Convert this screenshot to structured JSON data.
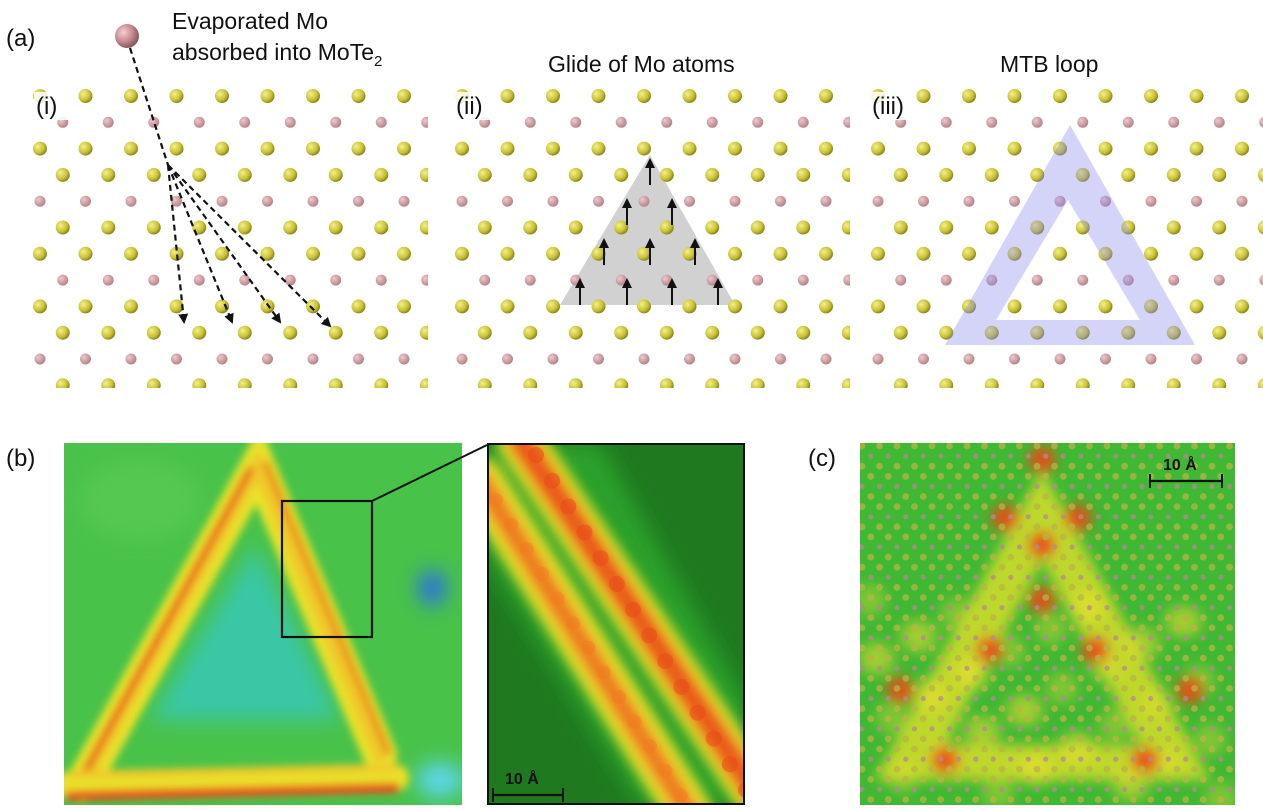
{
  "figure": {
    "panel_a": {
      "label": "(a)",
      "sub_i": "(i)",
      "sub_ii": "(ii)",
      "sub_iii": "(iii)",
      "caption_i_line1": "Evaporated Mo",
      "caption_i_line2_prefix": "absorbed into MoTe",
      "caption_i_line2_sub": "2",
      "title_ii": "Glide of Mo atoms",
      "title_iii": "MTB loop"
    },
    "panel_b": {
      "label": "(b)",
      "scale_bar": "10 Å"
    },
    "panel_c": {
      "label": "(c)",
      "scale_bar": "10 Å"
    },
    "colors": {
      "te_atom": "#c8c23c",
      "mo_atom": "#c6979e",
      "bond": "#c9a0a6",
      "triangle_shade": "#b9b9b9",
      "mtb_band": "#8f8ff0",
      "stm_green": "#33b233",
      "stm_yellow": "#e8e22a",
      "stm_red": "#e8501f"
    }
  }
}
